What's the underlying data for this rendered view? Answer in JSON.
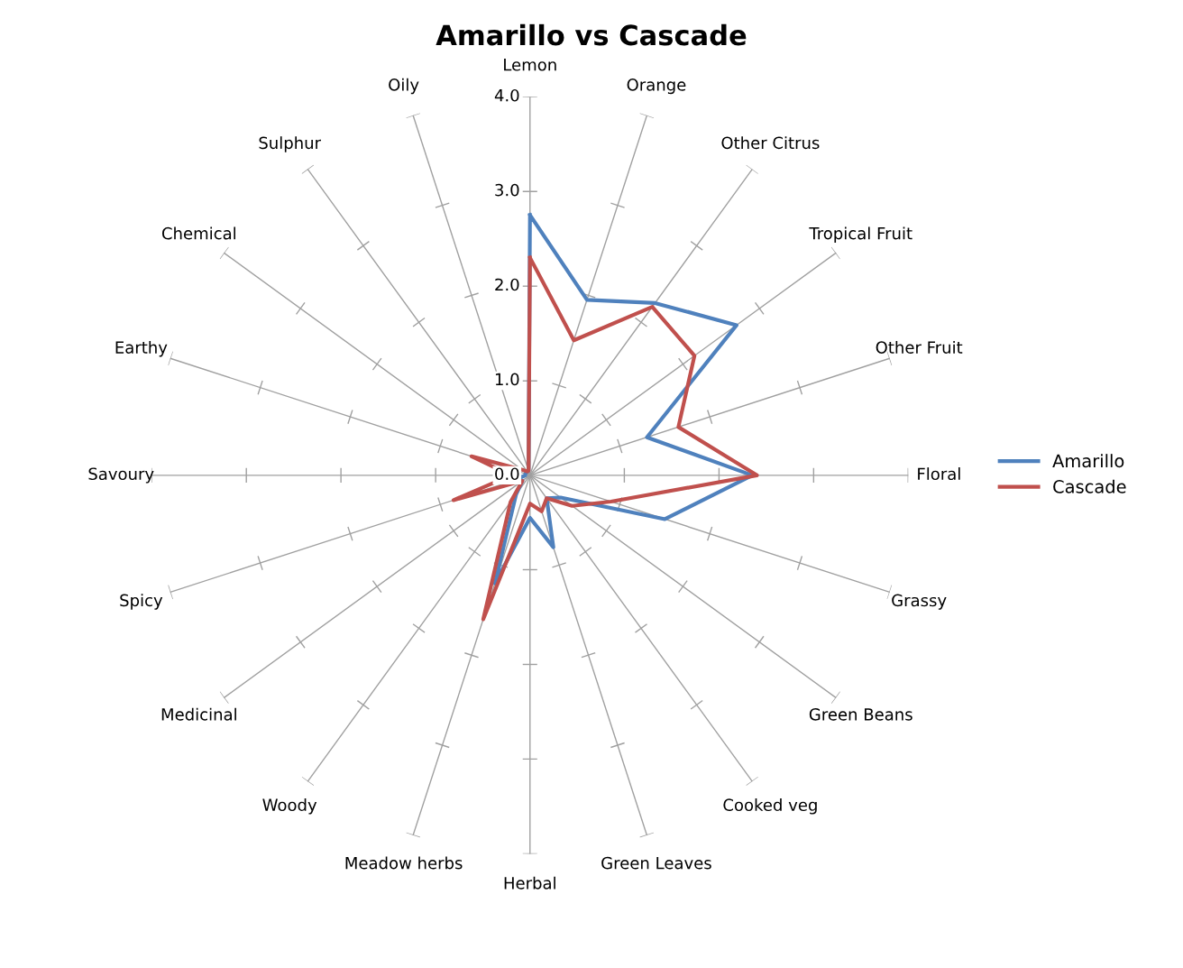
{
  "chart_data": {
    "type": "radar",
    "title": "Amarillo vs Cascade",
    "categories": [
      "Lemon",
      "Orange",
      "Other Citrus",
      "Tropical Fruit",
      "Other Fruit",
      "Floral",
      "Grassy",
      "Green Beans",
      "Cooked veg",
      "Green Leaves",
      "Herbal",
      "Meadow herbs",
      "Woody",
      "Medicinal",
      "Spicy",
      "Savoury",
      "Earthy",
      "Chemical",
      "Sulphur",
      "Oily"
    ],
    "series": [
      {
        "name": "Amarillo",
        "color": "#4f81bd",
        "values": [
          2.75,
          1.95,
          2.25,
          2.7,
          1.3,
          2.35,
          1.5,
          0.4,
          0.3,
          0.8,
          0.45,
          1.2,
          0.25,
          0.1,
          0.15,
          0.05,
          0.05,
          0.05,
          0.05,
          0.05
        ]
      },
      {
        "name": "Cascade",
        "color": "#c0504d",
        "values": [
          2.3,
          1.5,
          2.2,
          2.15,
          1.65,
          2.4,
          0.9,
          0.55,
          0.3,
          0.4,
          0.3,
          1.6,
          0.35,
          0.1,
          0.85,
          0.2,
          0.65,
          0.1,
          0.05,
          0.05
        ]
      }
    ],
    "ylim": [
      0,
      4
    ],
    "yticks": [
      {
        "value": 0,
        "label": "0.0"
      },
      {
        "value": 1,
        "label": "1.0"
      },
      {
        "value": 2,
        "label": "2.0"
      },
      {
        "value": 3,
        "label": "3.0"
      },
      {
        "value": 4,
        "label": "4.0"
      }
    ],
    "legend": "right"
  }
}
